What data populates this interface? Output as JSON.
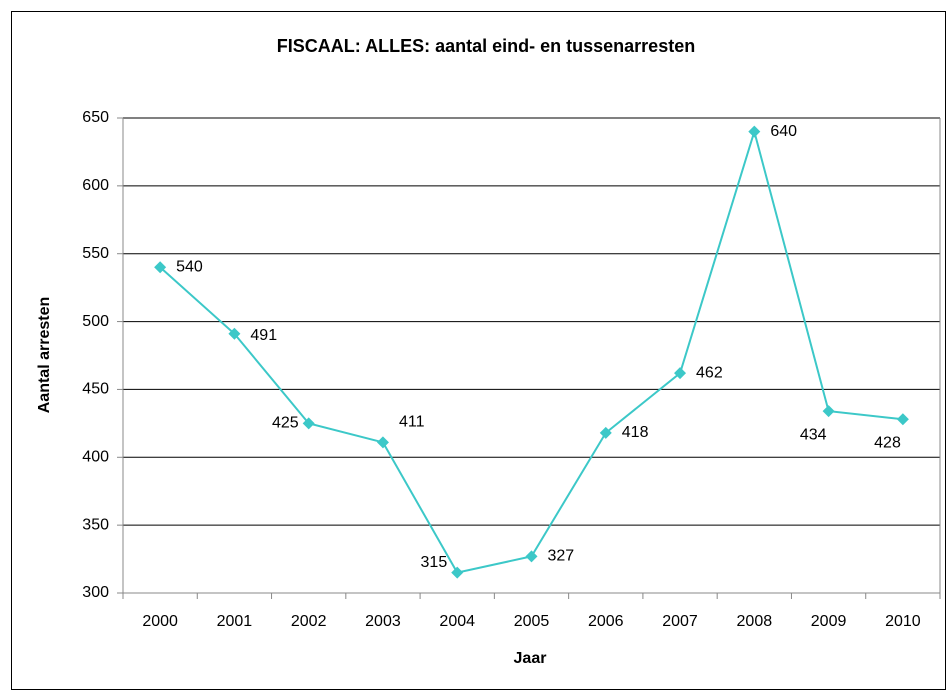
{
  "chart_data": {
    "type": "line",
    "title": "FISCAAL: ALLES: aantal eind- en tussenarresten",
    "x_label": "Jaar",
    "y_label": "Aantal arresten",
    "categories": [
      "2000",
      "2001",
      "2002",
      "2003",
      "2004",
      "2005",
      "2006",
      "2007",
      "2008",
      "2009",
      "2010"
    ],
    "values": [
      540,
      491,
      425,
      411,
      315,
      327,
      418,
      462,
      640,
      434,
      428
    ],
    "color": "#3cc8c8",
    "ylim": [
      300,
      650
    ],
    "yticks": [
      300,
      350,
      400,
      450,
      500,
      550,
      600,
      650
    ],
    "grid": true
  }
}
